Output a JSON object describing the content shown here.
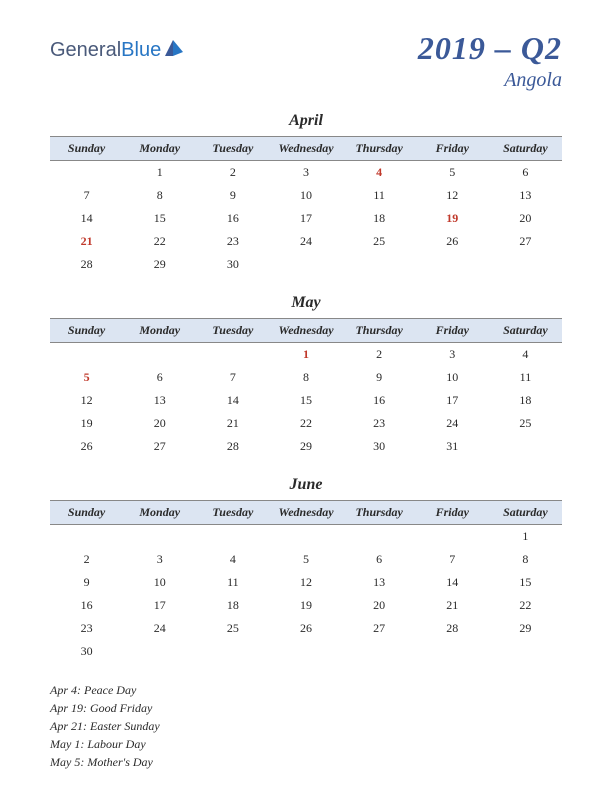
{
  "logo": {
    "text1": "General",
    "text2": "Blue"
  },
  "title": {
    "main": "2019 – Q2",
    "sub": "Angola"
  },
  "day_headers": [
    "Sunday",
    "Monday",
    "Tuesday",
    "Wednesday",
    "Thursday",
    "Friday",
    "Saturday"
  ],
  "months": [
    {
      "name": "April",
      "weeks": [
        [
          null,
          1,
          2,
          3,
          4,
          5,
          6
        ],
        [
          7,
          8,
          9,
          10,
          11,
          12,
          13
        ],
        [
          14,
          15,
          16,
          17,
          18,
          19,
          20
        ],
        [
          21,
          22,
          23,
          24,
          25,
          26,
          27
        ],
        [
          28,
          29,
          30,
          null,
          null,
          null,
          null
        ]
      ],
      "holidays": [
        4,
        19,
        21
      ]
    },
    {
      "name": "May",
      "weeks": [
        [
          null,
          null,
          null,
          1,
          2,
          3,
          4
        ],
        [
          5,
          6,
          7,
          8,
          9,
          10,
          11
        ],
        [
          12,
          13,
          14,
          15,
          16,
          17,
          18
        ],
        [
          19,
          20,
          21,
          22,
          23,
          24,
          25
        ],
        [
          26,
          27,
          28,
          29,
          30,
          31,
          null
        ]
      ],
      "holidays": [
        1,
        5
      ]
    },
    {
      "name": "June",
      "weeks": [
        [
          null,
          null,
          null,
          null,
          null,
          null,
          1
        ],
        [
          2,
          3,
          4,
          5,
          6,
          7,
          8
        ],
        [
          9,
          10,
          11,
          12,
          13,
          14,
          15
        ],
        [
          16,
          17,
          18,
          19,
          20,
          21,
          22
        ],
        [
          23,
          24,
          25,
          26,
          27,
          28,
          29
        ],
        [
          30,
          null,
          null,
          null,
          null,
          null,
          null
        ]
      ],
      "holidays": []
    }
  ],
  "holiday_list": [
    "Apr 4: Peace Day",
    "Apr 19: Good Friday",
    "Apr 21: Easter Sunday",
    "May 1: Labour Day",
    "May 5: Mother's Day"
  ],
  "colors": {
    "header_bg": "#dce5f2",
    "title_color": "#3b5998",
    "holiday_color": "#c0392b",
    "text_color": "#2a2a2a"
  }
}
